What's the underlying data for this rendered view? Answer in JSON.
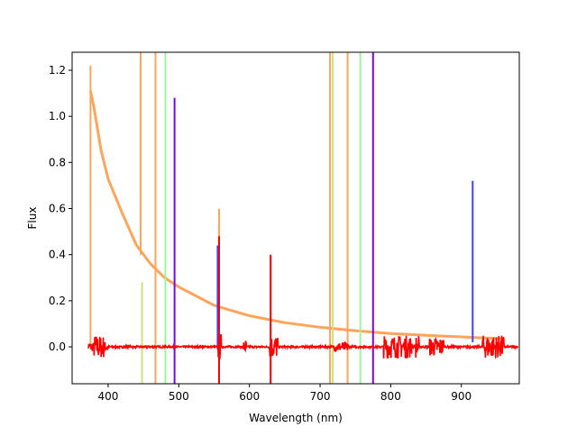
{
  "chart_data": {
    "type": "line",
    "title": "",
    "xlabel": "Wavelength (nm)",
    "ylabel": "Flux",
    "xlim": [
      349,
      982
    ],
    "ylim": [
      -0.16,
      1.278
    ],
    "xticks": [
      400,
      500,
      600,
      700,
      800,
      900
    ],
    "yticks": [
      0.0,
      0.2,
      0.4,
      0.6,
      0.8,
      1.0,
      1.2
    ],
    "grid": false,
    "continuum": {
      "name": "orange continuum",
      "color": "#ffa55a",
      "x": [
        375,
        380,
        390,
        400,
        420,
        440,
        460,
        480,
        500,
        550,
        600,
        650,
        700,
        750,
        800,
        850,
        900,
        960
      ],
      "y": [
        1.13,
        1.02,
        0.86,
        0.74,
        0.57,
        0.44,
        0.36,
        0.3,
        0.26,
        0.18,
        0.135,
        0.105,
        0.085,
        0.07,
        0.058,
        0.05,
        0.043,
        0.035
      ]
    },
    "baseline": {
      "name": "residual",
      "color": "#ff0000",
      "x_range": [
        372,
        980
      ],
      "noise_bursts": [
        [
          380,
          395,
          0.05
        ],
        [
          556,
          560,
          0.06
        ],
        [
          592,
          596,
          0.03
        ],
        [
          628,
          640,
          0.05
        ],
        [
          720,
          740,
          0.02
        ],
        [
          790,
          830,
          0.05
        ],
        [
          835,
          840,
          0.05
        ],
        [
          855,
          875,
          0.04
        ],
        [
          930,
          960,
          0.05
        ]
      ]
    },
    "spikes": [
      {
        "x": 375,
        "y0": 0.0,
        "y1": 1.22,
        "color": "#ffa55a"
      },
      {
        "x": 446,
        "y0": 0.4,
        "y1": 1.3,
        "color": "#ffa55a"
      },
      {
        "x": 448,
        "y0": -0.16,
        "y1": 0.28,
        "color": "#d4dd80"
      },
      {
        "x": 467,
        "y0": -0.16,
        "y1": 1.3,
        "color": "#ffa55a"
      },
      {
        "x": 481,
        "y0": -0.16,
        "y1": 1.3,
        "color": "#9ef59e"
      },
      {
        "x": 494,
        "y0": -0.16,
        "y1": 1.08,
        "color": "#7f00ff"
      },
      {
        "x": 555,
        "y0": 0.0,
        "y1": 0.44,
        "color": "#4040ff"
      },
      {
        "x": 557,
        "y0": 0.0,
        "y1": 0.6,
        "color": "#ffa55a"
      },
      {
        "x": 557,
        "y0": -0.16,
        "y1": 0.48,
        "color": "#ff0000"
      },
      {
        "x": 630,
        "y0": -0.16,
        "y1": 0.4,
        "color": "#ff0000"
      },
      {
        "x": 714,
        "y0": -0.16,
        "y1": 1.3,
        "color": "#ffa55a"
      },
      {
        "x": 718,
        "y0": -0.16,
        "y1": 1.3,
        "color": "#d4dd80"
      },
      {
        "x": 739,
        "y0": -0.16,
        "y1": 1.3,
        "color": "#ffa55a"
      },
      {
        "x": 757,
        "y0": -0.16,
        "y1": 1.3,
        "color": "#9ef59e"
      },
      {
        "x": 775,
        "y0": -0.16,
        "y1": 1.3,
        "color": "#7f00ff"
      },
      {
        "x": 916,
        "y0": 0.02,
        "y1": 0.72,
        "color": "#4040ff"
      }
    ]
  }
}
